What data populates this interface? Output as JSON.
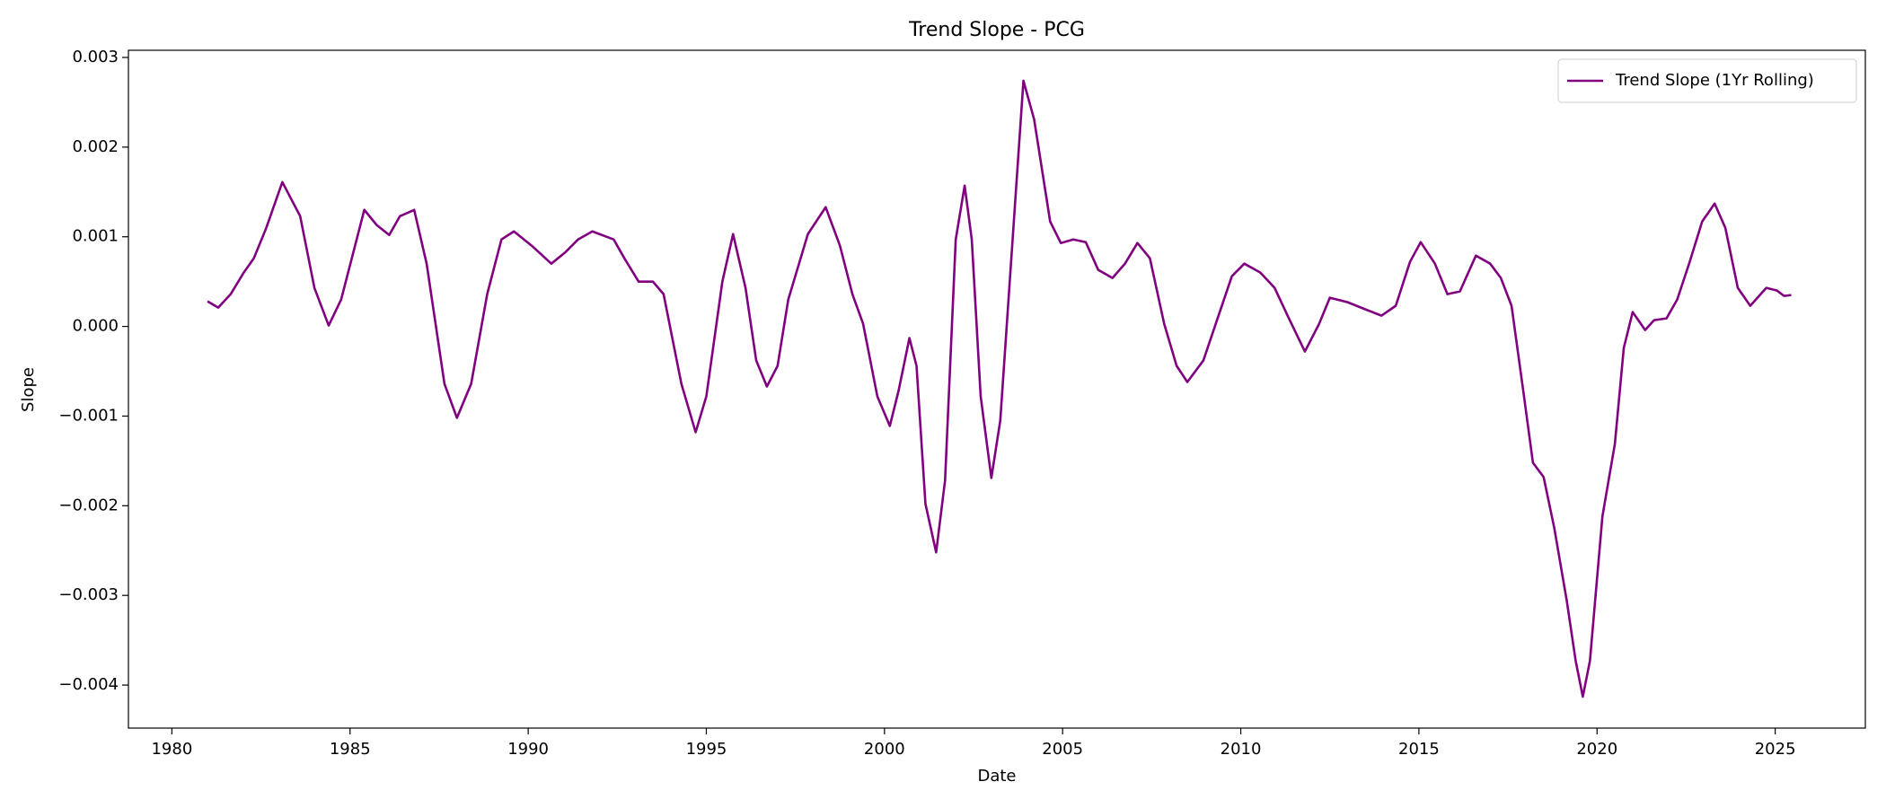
{
  "chart_data": {
    "type": "line",
    "title": "Trend Slope - PCG",
    "xlabel": "Date",
    "ylabel": "Slope",
    "legend": "upper right",
    "xlim": [
      1978.78,
      2027.53
    ],
    "xticks": [
      1980,
      1985,
      1990,
      1995,
      2000,
      2005,
      2010,
      2015,
      2020,
      2025
    ],
    "ylim": [
      -0.00448,
      0.00308
    ],
    "yticks": [
      {
        "value": -0.004,
        "label": "−0.004"
      },
      {
        "value": -0.003,
        "label": "−0.003"
      },
      {
        "value": -0.002,
        "label": "−0.002"
      },
      {
        "value": -0.001,
        "label": "−0.001"
      },
      {
        "value": 0,
        "label": "0.000"
      },
      {
        "value": 0.001,
        "label": "0.001"
      },
      {
        "value": 0.002,
        "label": "0.002"
      },
      {
        "value": 0.003,
        "label": "0.003"
      }
    ],
    "x": [
      1981.0,
      1981.3,
      1981.65,
      1982.0,
      1982.3,
      1982.65,
      1983.1,
      1983.6,
      1984.0,
      1984.4,
      1984.75,
      1985.4,
      1985.75,
      1986.1,
      1986.4,
      1986.8,
      1987.15,
      1987.65,
      1988.0,
      1988.4,
      1988.85,
      1989.25,
      1989.6,
      1990.1,
      1990.65,
      1991.05,
      1991.4,
      1991.8,
      1992.4,
      1992.7,
      1993.1,
      1993.5,
      1993.8,
      1994.3,
      1994.7,
      1995.0,
      1995.45,
      1995.75,
      1996.1,
      1996.4,
      1996.7,
      1997.0,
      1997.3,
      1997.85,
      1998.35,
      1998.75,
      1999.1,
      1999.4,
      1999.8,
      2000.15,
      2000.4,
      2000.7,
      2000.9,
      2001.15,
      2001.45,
      2001.7,
      2002.0,
      2002.25,
      2002.45,
      2002.7,
      2003.0,
      2003.25,
      2003.55,
      2003.9,
      2004.2,
      2004.65,
      2004.95,
      2005.3,
      2005.65,
      2006.0,
      2006.4,
      2006.75,
      2007.1,
      2007.45,
      2007.85,
      2008.2,
      2008.5,
      2008.95,
      2009.35,
      2009.75,
      2010.1,
      2010.55,
      2010.95,
      2011.35,
      2011.8,
      2012.2,
      2012.5,
      2013.0,
      2013.5,
      2013.95,
      2014.35,
      2014.75,
      2015.05,
      2015.45,
      2015.8,
      2016.15,
      2016.6,
      2017.0,
      2017.3,
      2017.6,
      2017.95,
      2018.2,
      2018.5,
      2018.8,
      2019.15,
      2019.4,
      2019.6,
      2019.8,
      2020.15,
      2020.5,
      2020.75,
      2021.0,
      2021.35,
      2021.6,
      2021.95,
      2022.25,
      2022.6,
      2022.95,
      2023.3,
      2023.6,
      2023.95,
      2024.3,
      2024.75,
      2025.05,
      2025.25,
      2025.45
    ],
    "series": [
      {
        "name": "Trend Slope (1Yr Rolling)",
        "color": "#800080",
        "values": [
          0.00028,
          0.00021,
          0.00036,
          0.00059,
          0.00076,
          0.0011,
          0.00161,
          0.00123,
          0.00043,
          1e-05,
          0.0003,
          0.0013,
          0.00113,
          0.00102,
          0.00123,
          0.0013,
          0.0007,
          -0.00064,
          -0.00102,
          -0.00064,
          0.00036,
          0.00097,
          0.00106,
          0.0009,
          0.0007,
          0.00083,
          0.00097,
          0.00106,
          0.00097,
          0.00076,
          0.0005,
          0.0005,
          0.00036,
          -0.00064,
          -0.00118,
          -0.00078,
          0.0005,
          0.00103,
          0.00043,
          -0.00038,
          -0.00067,
          -0.00044,
          0.0003,
          0.00103,
          0.00133,
          0.0009,
          0.00036,
          3e-05,
          -0.00078,
          -0.00111,
          -0.00071,
          -0.00013,
          -0.00044,
          -0.00198,
          -0.00252,
          -0.00172,
          0.00097,
          0.00157,
          0.00097,
          -0.00078,
          -0.00169,
          -0.00105,
          0.0007,
          0.00274,
          0.00231,
          0.00117,
          0.00093,
          0.00097,
          0.00094,
          0.00063,
          0.00054,
          0.0007,
          0.00093,
          0.00076,
          3e-05,
          -0.00044,
          -0.00062,
          -0.00038,
          9e-05,
          0.00056,
          0.0007,
          0.0006,
          0.00043,
          9e-05,
          -0.00028,
          3e-05,
          0.00032,
          0.00027,
          0.00019,
          0.00012,
          0.00023,
          0.00072,
          0.00094,
          0.0007,
          0.00036,
          0.00039,
          0.00079,
          0.0007,
          0.00054,
          0.00023,
          -0.00078,
          -0.00152,
          -0.00168,
          -0.00225,
          -0.00306,
          -0.00373,
          -0.00413,
          -0.00373,
          -0.00212,
          -0.00131,
          -0.00024,
          0.00016,
          -4e-05,
          7e-05,
          9e-05,
          0.0003,
          0.00072,
          0.00117,
          0.00137,
          0.0011,
          0.00043,
          0.00023,
          0.00043,
          0.0004,
          0.00034,
          0.00035
        ]
      }
    ]
  }
}
